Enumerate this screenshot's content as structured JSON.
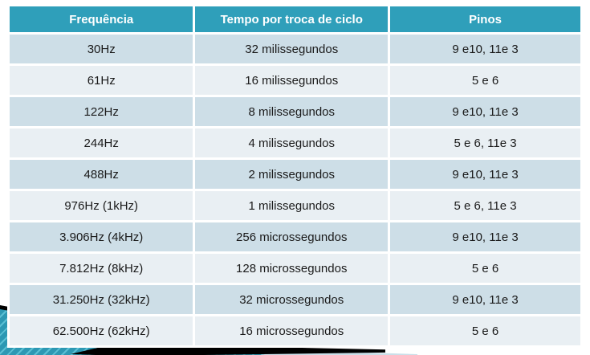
{
  "table": {
    "columns": [
      "Frequência",
      "Tempo por troca de ciclo",
      "Pinos"
    ],
    "rows": [
      [
        "30Hz",
        "32 milissegundos",
        "9 e10, 11e 3"
      ],
      [
        "61Hz",
        "16 milissegundos",
        "5 e 6"
      ],
      [
        "122Hz",
        "8 milissegundos",
        "9 e10, 11e 3"
      ],
      [
        "244Hz",
        "4 milissegundos",
        "5 e 6, 11e 3"
      ],
      [
        "488Hz",
        "2 milissegundos",
        "9 e10, 11e 3"
      ],
      [
        "976Hz (1kHz)",
        "1 milissegundos",
        "5 e 6, 11e 3"
      ],
      [
        "3.906Hz (4kHz)",
        "256 microssegundos",
        "9 e10, 11e 3"
      ],
      [
        "7.812Hz (8kHz)",
        "128 microssegundos",
        "5 e 6"
      ],
      [
        "31.250Hz (32kHz)",
        "32 microssegundos",
        "9 e10, 11e 3"
      ],
      [
        "62.500Hz (62kHz)",
        "16 microssegundos",
        "5 e 6"
      ]
    ]
  },
  "chart_data": {
    "type": "table",
    "title": "",
    "columns": [
      "Frequência",
      "Tempo por troca de ciclo",
      "Pinos"
    ],
    "rows": [
      [
        "30Hz",
        "32 milissegundos",
        "9 e10, 11e 3"
      ],
      [
        "61Hz",
        "16 milissegundos",
        "5 e 6"
      ],
      [
        "122Hz",
        "8 milissegundos",
        "9 e10, 11e 3"
      ],
      [
        "244Hz",
        "4 milissegundos",
        "5 e 6, 11e 3"
      ],
      [
        "488Hz",
        "2 milissegundos",
        "9 e10, 11e 3"
      ],
      [
        "976Hz (1kHz)",
        "1 milissegundos",
        "5 e 6, 11e 3"
      ],
      [
        "3.906Hz (4kHz)",
        "256 microssegundos",
        "9 e10, 11e 3"
      ],
      [
        "7.812Hz (8kHz)",
        "128 microssegundos",
        "5 e 6"
      ],
      [
        "31.250Hz (32kHz)",
        "32 microssegundos",
        "9 e10, 11e 3"
      ],
      [
        "62.500Hz (62kHz)",
        "16 microssegundos",
        "5 e 6"
      ]
    ]
  },
  "colors": {
    "header_bg": "#2f9fba",
    "header_text": "#ffffff",
    "row_alt_dark": "#cddee7",
    "row_alt_light": "#e9eff3",
    "cell_text": "#1a1a1a",
    "ribbon_teal": "#2d98b3",
    "ribbon_stripe": "#5bc0d4",
    "swoosh_black": "#000000",
    "wedge_light": "#cadfe9",
    "background": "#ffffff"
  },
  "decoration": {
    "items": [
      "teal-striped-ribbon",
      "black-swoosh",
      "light-blue-wedge"
    ]
  }
}
